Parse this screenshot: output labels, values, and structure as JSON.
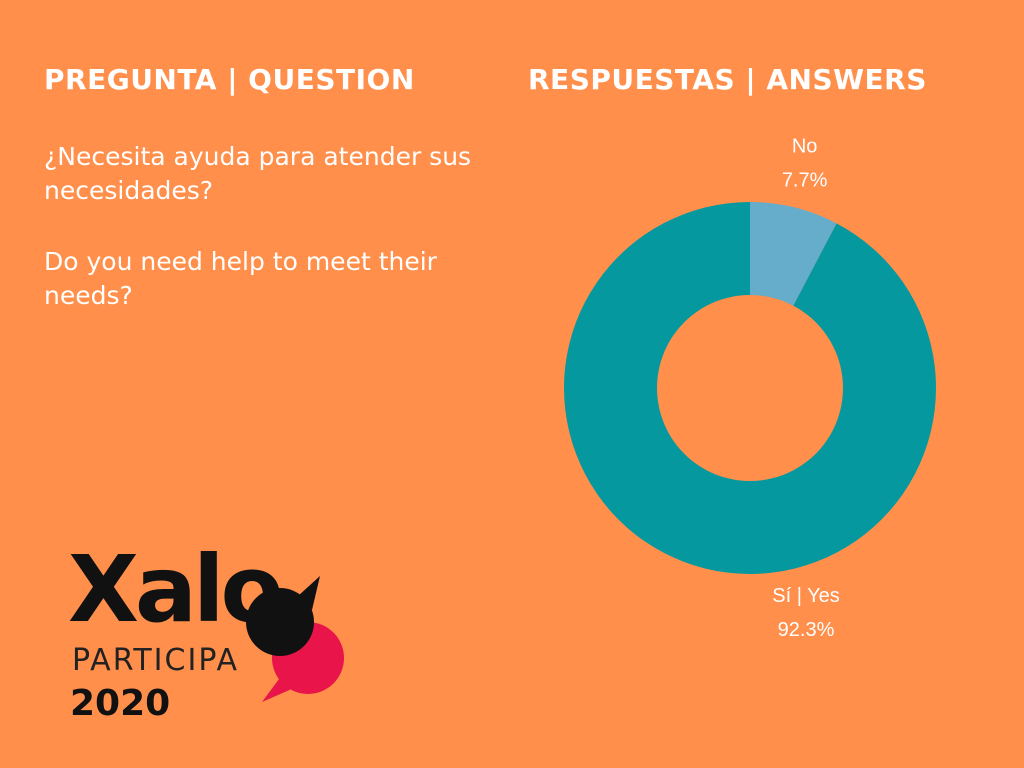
{
  "headings": {
    "question": "PREGUNTA | QUESTION",
    "answers": "RESPUESTAS | ANSWERS"
  },
  "question": {
    "es": "¿Necesita ayuda para atender sus necesidades?",
    "en": "Do you need help to meet their needs?"
  },
  "logo": {
    "word": "Xalo",
    "subtitle": "PARTICIPA",
    "year": "2020",
    "icon": "speech-bubbles-icon"
  },
  "colors": {
    "background": "#FF8F4B",
    "yes": "#05989E",
    "no": "#66ACCB",
    "logo_dark": "#111111",
    "logo_accent": "#E8144A",
    "text": "#FFFFFF"
  },
  "chart_data": {
    "type": "pie",
    "variant": "donut",
    "title": "",
    "slices": [
      {
        "label": "Sí | Yes",
        "value": 92.3,
        "value_label": "92.3%",
        "color": "#05989E"
      },
      {
        "label": "No",
        "value": 7.7,
        "value_label": "7.7%",
        "color": "#66ACCB"
      }
    ],
    "start": "top",
    "direction": "counter-clockwise",
    "legend": "none"
  }
}
